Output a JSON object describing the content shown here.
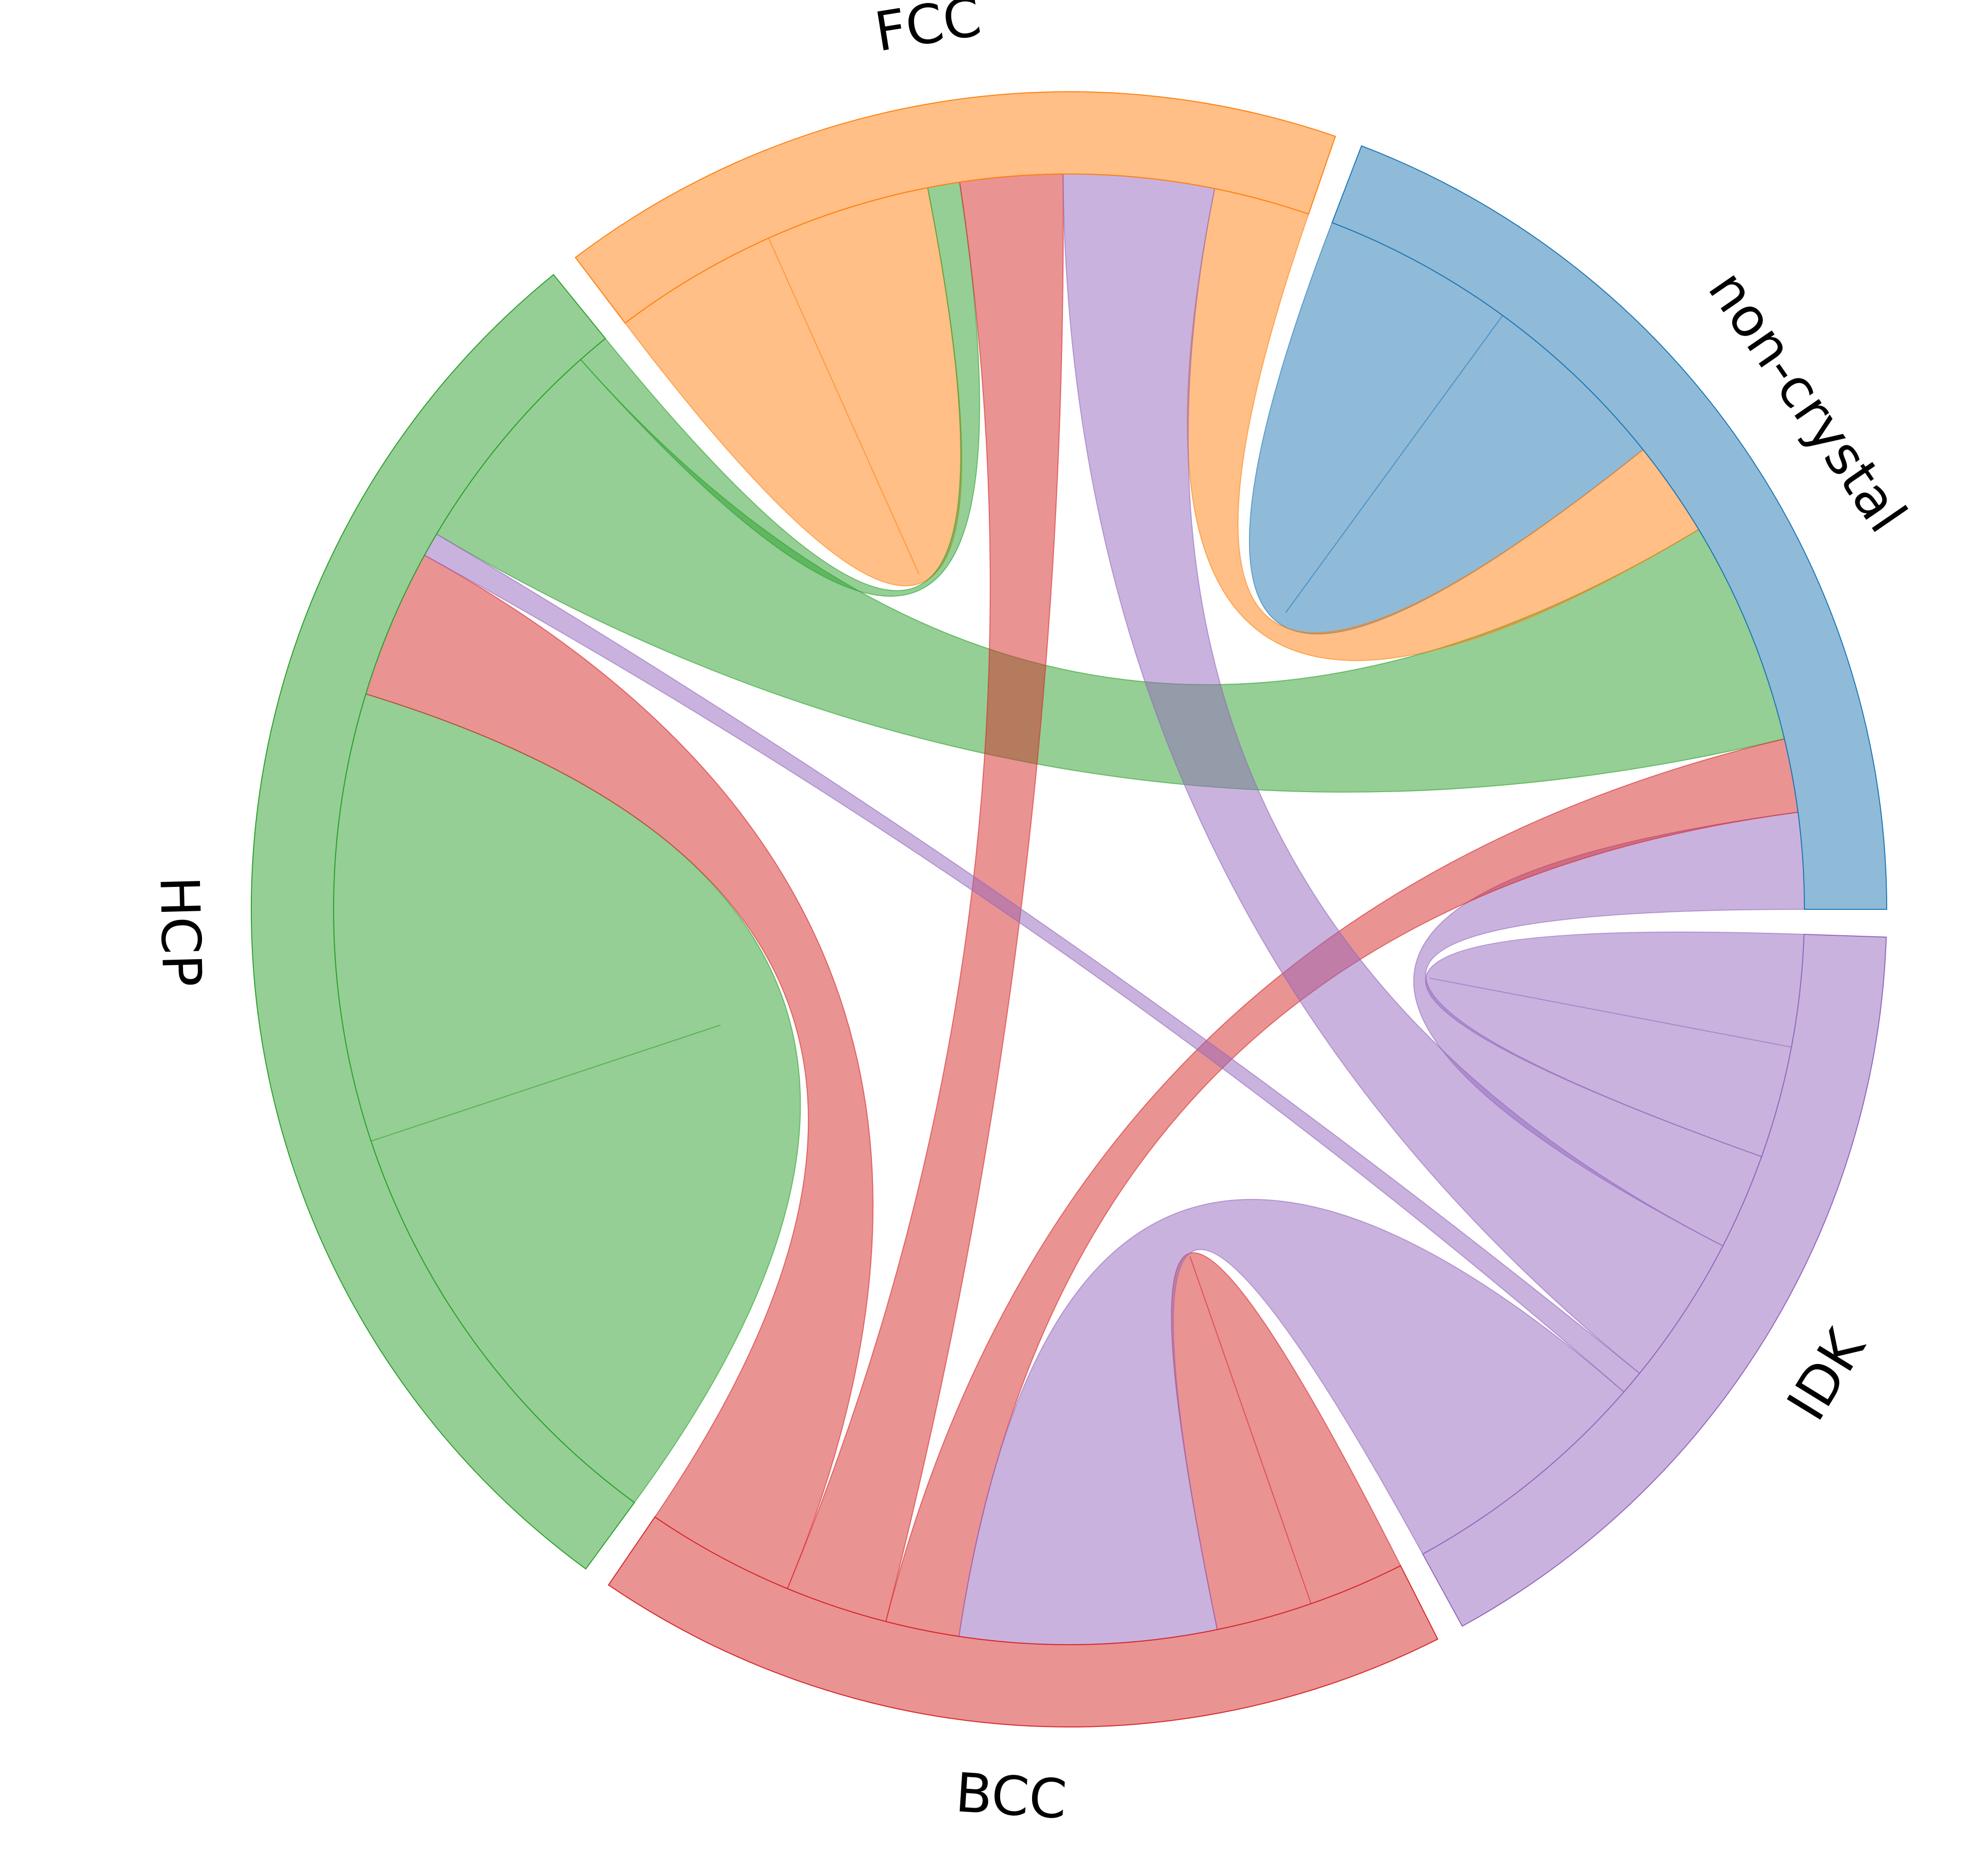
{
  "chart_data": {
    "type": "chord",
    "nodes": [
      {
        "name": "non-crystal",
        "color": "#1f77b4"
      },
      {
        "name": "FCC",
        "color": "#ff7f0e"
      },
      {
        "name": "HCP",
        "color": "#2ca02c"
      },
      {
        "name": "BCC",
        "color": "#d62728"
      },
      {
        "name": "IDK",
        "color": "#9467bd"
      }
    ],
    "order_counterclockwise_from_east": [
      "non-crystal",
      "FCC",
      "HCP",
      "BCC",
      "IDK"
    ],
    "flows": [
      {
        "source": "non-crystal",
        "target": "non-crystal",
        "value": 12.0,
        "color_of": "non-crystal"
      },
      {
        "source": "non-crystal",
        "target": "HCP",
        "value": 14.0,
        "color_of": "HCP"
      },
      {
        "source": "non-crystal",
        "target": "FCC",
        "value": 6.0,
        "color_of": "FCC"
      },
      {
        "source": "non-crystal",
        "target": "IDK",
        "value": 6.0,
        "color_of": "IDK"
      },
      {
        "source": "non-crystal",
        "target": "BCC",
        "value": 4.6,
        "color_of": "BCC"
      },
      {
        "source": "FCC",
        "target": "FCC",
        "value": 10.3,
        "color_of": "FCC"
      },
      {
        "source": "FCC",
        "target": "HCP",
        "value": 2.0,
        "color_of": "HCP"
      },
      {
        "source": "FCC",
        "target": "BCC",
        "value": 6.4,
        "color_of": "BCC"
      },
      {
        "source": "FCC",
        "target": "IDK",
        "value": 9.4,
        "color_of": "IDK"
      },
      {
        "source": "HCP",
        "target": "HCP",
        "value": 28.0,
        "color_of": "HCP"
      },
      {
        "source": "HCP",
        "target": "BCC",
        "value": 9.3,
        "color_of": "BCC"
      },
      {
        "source": "HCP",
        "target": "IDK",
        "value": 1.5,
        "color_of": "IDK"
      },
      {
        "source": "BCC",
        "target": "BCC",
        "value": 6.0,
        "color_of": "BCC"
      },
      {
        "source": "BCC",
        "target": "IDK",
        "value": 16.0,
        "color_of": "IDK"
      },
      {
        "source": "IDK",
        "target": "IDK",
        "value": 7.0,
        "color_of": "IDK"
      }
    ],
    "title": "",
    "legend": "none"
  }
}
